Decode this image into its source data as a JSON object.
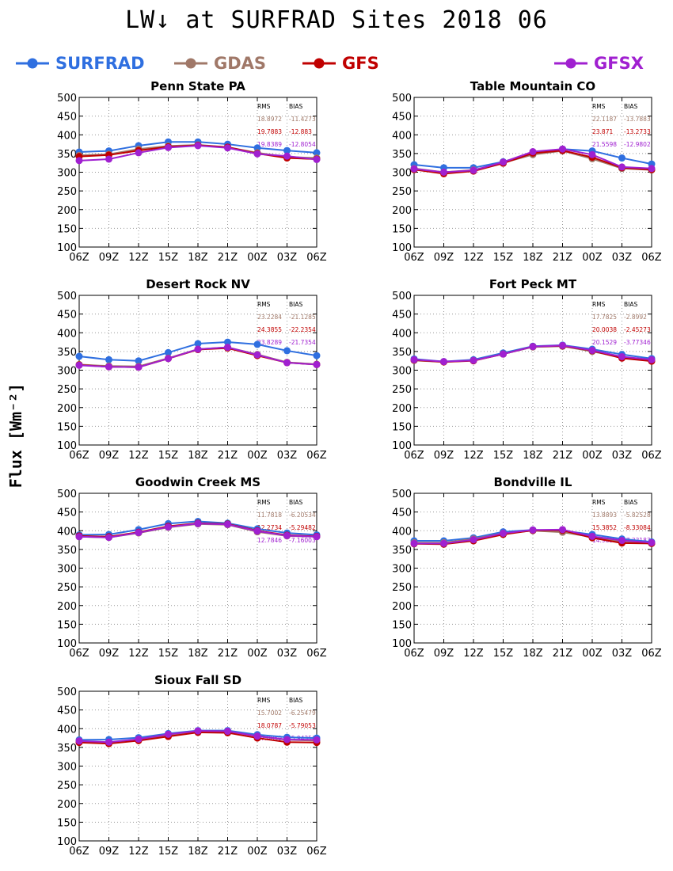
{
  "title": "LW↓ at SURFRAD Sites    2018 06",
  "ylabel": "Flux [Wm⁻²]",
  "legend": [
    {
      "name": "SURFRAD",
      "color": "#2f6fe0"
    },
    {
      "name": "GDAS",
      "color": "#a07868"
    },
    {
      "name": "GFS",
      "color": "#c00000"
    },
    {
      "name": "GFSX",
      "color": "#a020d0"
    }
  ],
  "chart_data": [
    {
      "type": "line",
      "title": "Penn State PA",
      "categories": [
        "06Z",
        "09Z",
        "12Z",
        "15Z",
        "18Z",
        "21Z",
        "00Z",
        "03Z",
        "06Z"
      ],
      "ylim": [
        100,
        500
      ],
      "yticks": [
        100,
        150,
        200,
        250,
        300,
        350,
        400,
        450,
        500
      ],
      "grid": true,
      "stats_header": [
        "RMS",
        "BIAS"
      ],
      "stats": [
        {
          "series": "GDAS",
          "rms": "18.8972",
          "bias": "-11.4273"
        },
        {
          "series": "GFS",
          "rms": "19.7883",
          "bias": "-12.883"
        },
        {
          "series": "GFSX",
          "rms": "19.8389",
          "bias": "-12.8054"
        }
      ],
      "series": [
        {
          "name": "SURFRAD",
          "values": [
            354,
            357,
            371,
            381,
            381,
            375,
            365,
            358,
            352
          ]
        },
        {
          "name": "GDAS",
          "values": [
            345,
            348,
            362,
            370,
            373,
            367,
            352,
            341,
            338
          ]
        },
        {
          "name": "GFS",
          "values": [
            342,
            346,
            358,
            368,
            372,
            367,
            350,
            338,
            335
          ]
        },
        {
          "name": "GFSX",
          "values": [
            331,
            335,
            352,
            366,
            371,
            365,
            349,
            343,
            334
          ]
        }
      ]
    },
    {
      "type": "line",
      "title": "Table Mountain CO",
      "categories": [
        "06Z",
        "09Z",
        "12Z",
        "15Z",
        "18Z",
        "21Z",
        "00Z",
        "03Z",
        "06Z"
      ],
      "ylim": [
        100,
        500
      ],
      "yticks": [
        100,
        150,
        200,
        250,
        300,
        350,
        400,
        450,
        500
      ],
      "grid": true,
      "stats_header": [
        "RMS",
        "BIAS"
      ],
      "stats": [
        {
          "series": "GDAS",
          "rms": "22.1187",
          "bias": "-13.7883"
        },
        {
          "series": "GFS",
          "rms": "23.871",
          "bias": "-13.2733"
        },
        {
          "series": "GFSX",
          "rms": "21.5598",
          "bias": "-12.9802"
        }
      ],
      "series": [
        {
          "name": "SURFRAD",
          "values": [
            320,
            312,
            312,
            328,
            350,
            362,
            357,
            338,
            322
          ]
        },
        {
          "name": "GDAS",
          "values": [
            310,
            300,
            306,
            325,
            347,
            357,
            336,
            310,
            306
          ]
        },
        {
          "name": "GFS",
          "values": [
            307,
            296,
            303,
            324,
            351,
            358,
            340,
            312,
            307
          ]
        },
        {
          "name": "GFSX",
          "values": [
            309,
            300,
            305,
            327,
            355,
            362,
            347,
            314,
            310
          ]
        }
      ]
    },
    {
      "type": "line",
      "title": "Desert Rock NV",
      "categories": [
        "06Z",
        "09Z",
        "12Z",
        "15Z",
        "18Z",
        "21Z",
        "00Z",
        "03Z",
        "06Z"
      ],
      "ylim": [
        100,
        500
      ],
      "yticks": [
        100,
        150,
        200,
        250,
        300,
        350,
        400,
        450,
        500
      ],
      "grid": true,
      "stats_header": [
        "RMS",
        "BIAS"
      ],
      "stats": [
        {
          "series": "GDAS",
          "rms": "23.2284",
          "bias": "-21.1285"
        },
        {
          "series": "GFS",
          "rms": "24.3855",
          "bias": "-22.2354"
        },
        {
          "series": "GFSX",
          "rms": "23.8289",
          "bias": "-21.7354"
        }
      ],
      "series": [
        {
          "name": "SURFRAD",
          "values": [
            337,
            328,
            325,
            347,
            371,
            375,
            369,
            352,
            339
          ]
        },
        {
          "name": "GDAS",
          "values": [
            315,
            311,
            310,
            332,
            356,
            361,
            342,
            321,
            316
          ]
        },
        {
          "name": "GFS",
          "values": [
            314,
            309,
            308,
            331,
            355,
            359,
            339,
            320,
            315
          ]
        },
        {
          "name": "GFSX",
          "values": [
            313,
            309,
            308,
            331,
            356,
            361,
            341,
            320,
            315
          ]
        }
      ]
    },
    {
      "type": "line",
      "title": "Fort Peck MT",
      "categories": [
        "06Z",
        "09Z",
        "12Z",
        "15Z",
        "18Z",
        "21Z",
        "00Z",
        "03Z",
        "06Z"
      ],
      "ylim": [
        100,
        500
      ],
      "yticks": [
        100,
        150,
        200,
        250,
        300,
        350,
        400,
        450,
        500
      ],
      "grid": true,
      "stats_header": [
        "RMS",
        "BIAS"
      ],
      "stats": [
        {
          "series": "GDAS",
          "rms": "17.7825",
          "bias": "-2.8992"
        },
        {
          "series": "GFS",
          "rms": "20.0038",
          "bias": "-2.45273"
        },
        {
          "series": "GFSX",
          "rms": "20.1529",
          "bias": "-3.77346"
        }
      ],
      "series": [
        {
          "name": "SURFRAD",
          "values": [
            330,
            323,
            328,
            346,
            364,
            367,
            356,
            342,
            331
          ]
        },
        {
          "name": "GDAS",
          "values": [
            326,
            322,
            326,
            343,
            362,
            364,
            350,
            334,
            325
          ]
        },
        {
          "name": "GFS",
          "values": [
            327,
            322,
            325,
            343,
            363,
            365,
            352,
            332,
            324
          ]
        },
        {
          "name": "GFSX",
          "values": [
            328,
            323,
            326,
            343,
            363,
            366,
            353,
            336,
            328
          ]
        }
      ]
    },
    {
      "type": "line",
      "title": "Goodwin Creek MS",
      "categories": [
        "06Z",
        "09Z",
        "12Z",
        "15Z",
        "18Z",
        "21Z",
        "00Z",
        "03Z",
        "06Z"
      ],
      "ylim": [
        100,
        500
      ],
      "yticks": [
        100,
        150,
        200,
        250,
        300,
        350,
        400,
        450,
        500
      ],
      "grid": true,
      "stats_header": [
        "RMS",
        "BIAS"
      ],
      "stats": [
        {
          "series": "GDAS",
          "rms": "11.7818",
          "bias": "-6.20534"
        },
        {
          "series": "GFS",
          "rms": "12.2734",
          "bias": "-5.29482"
        },
        {
          "series": "GFSX",
          "rms": "12.7846",
          "bias": "-7.16003"
        }
      ],
      "series": [
        {
          "name": "SURFRAD",
          "values": [
            389,
            390,
            403,
            419,
            425,
            420,
            405,
            394,
            389
          ]
        },
        {
          "name": "GDAS",
          "values": [
            384,
            382,
            394,
            409,
            418,
            416,
            397,
            386,
            384
          ]
        },
        {
          "name": "GFS",
          "values": [
            386,
            384,
            396,
            412,
            420,
            418,
            400,
            388,
            385
          ]
        },
        {
          "name": "GFSX",
          "values": [
            384,
            382,
            395,
            410,
            419,
            417,
            399,
            387,
            384
          ]
        }
      ]
    },
    {
      "type": "line",
      "title": "Bondville IL",
      "categories": [
        "06Z",
        "09Z",
        "12Z",
        "15Z",
        "18Z",
        "21Z",
        "00Z",
        "03Z",
        "06Z"
      ],
      "ylim": [
        100,
        500
      ],
      "yticks": [
        100,
        150,
        200,
        250,
        300,
        350,
        400,
        450,
        500
      ],
      "grid": true,
      "stats_header": [
        "RMS",
        "BIAS"
      ],
      "stats": [
        {
          "series": "GDAS",
          "rms": "13.8893",
          "bias": "-5.82528"
        },
        {
          "series": "GFS",
          "rms": "15.3852",
          "bias": "-8.33084"
        },
        {
          "series": "GFSX",
          "rms": "14.9856",
          "bias": "-7.33183"
        }
      ],
      "series": [
        {
          "name": "SURFRAD",
          "values": [
            373,
            373,
            381,
            397,
            402,
            400,
            390,
            378,
            370
          ]
        },
        {
          "name": "GDAS",
          "values": [
            368,
            368,
            378,
            393,
            400,
            396,
            383,
            370,
            366
          ]
        },
        {
          "name": "GFS",
          "values": [
            365,
            364,
            373,
            390,
            401,
            401,
            381,
            367,
            366
          ]
        },
        {
          "name": "GFSX",
          "values": [
            366,
            366,
            376,
            393,
            402,
            403,
            385,
            374,
            368
          ]
        }
      ]
    },
    {
      "type": "line",
      "title": "Sioux Fall SD",
      "categories": [
        "06Z",
        "09Z",
        "12Z",
        "15Z",
        "18Z",
        "21Z",
        "00Z",
        "03Z",
        "06Z"
      ],
      "ylim": [
        100,
        500
      ],
      "yticks": [
        100,
        150,
        200,
        250,
        300,
        350,
        400,
        450,
        500
      ],
      "grid": true,
      "stats_header": [
        "RMS",
        "BIAS"
      ],
      "stats": [
        {
          "series": "GDAS",
          "rms": "15.7002",
          "bias": "-6.25479"
        },
        {
          "series": "GFS",
          "rms": "18.0787",
          "bias": "-5.79053"
        },
        {
          "series": "GFSX",
          "rms": "17.0859",
          "bias": "-5.94356"
        }
      ],
      "series": [
        {
          "name": "SURFRAD",
          "values": [
            370,
            371,
            376,
            387,
            395,
            395,
            384,
            377,
            375
          ]
        },
        {
          "name": "GDAS",
          "values": [
            367,
            363,
            370,
            382,
            392,
            392,
            380,
            370,
            368
          ]
        },
        {
          "name": "GFS",
          "values": [
            363,
            360,
            368,
            379,
            390,
            389,
            375,
            364,
            363
          ]
        },
        {
          "name": "GFSX",
          "values": [
            367,
            364,
            372,
            385,
            394,
            393,
            380,
            371,
            370
          ]
        }
      ]
    }
  ]
}
